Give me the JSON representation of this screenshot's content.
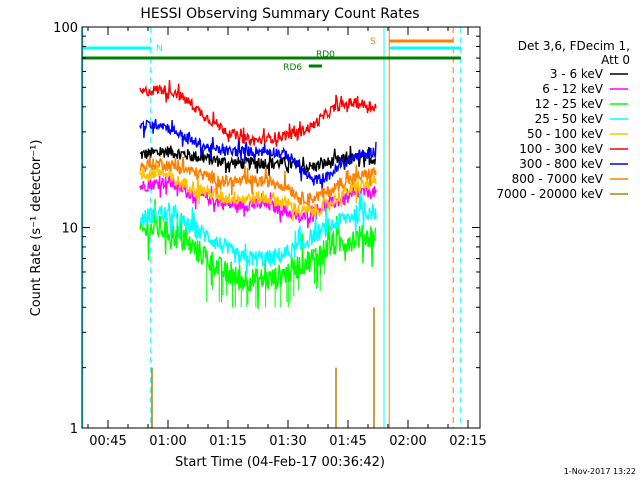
{
  "chart_data": {
    "type": "line",
    "title": "HESSI Observing Summary Count Rates",
    "xlabel": "Start Time (04-Feb-17 00:36:42)",
    "ylabel": "Count Rate (s⁻¹ detector⁻¹)",
    "footer": "1-Nov-2017 13:22",
    "y_scale": "log",
    "ylim": [
      1,
      100
    ],
    "y_ticks": [
      {
        "value": 1,
        "label": "1"
      },
      {
        "value": 10,
        "label": "10"
      },
      {
        "value": 100,
        "label": "100"
      }
    ],
    "xlim_minutes": [
      38.5,
      138
    ],
    "x_ticks": [
      {
        "value": 45,
        "label": "00:45"
      },
      {
        "value": 60,
        "label": "01:00"
      },
      {
        "value": 75,
        "label": "01:15"
      },
      {
        "value": 90,
        "label": "01:30"
      },
      {
        "value": 105,
        "label": "01:45"
      },
      {
        "value": 120,
        "label": "02:00"
      },
      {
        "value": 135,
        "label": "02:15"
      }
    ],
    "legend": {
      "placement": "right",
      "header": [
        "Det 3,6, FDecim 1,",
        "Att 0"
      ],
      "entries": [
        {
          "label": "3 - 6 keV",
          "color": "#000000"
        },
        {
          "label": "6 - 12 keV",
          "color": "#ff00ff"
        },
        {
          "label": "12 - 25 keV",
          "color": "#00ff00"
        },
        {
          "label": "25 - 50 keV",
          "color": "#00ffff"
        },
        {
          "label": "50 - 100 keV",
          "color": "#ffc000"
        },
        {
          "label": "100 - 300 keV",
          "color": "#ff0000"
        },
        {
          "label": "300 - 800 keV",
          "color": "#0000ff"
        },
        {
          "label": "800 - 7000 keV",
          "color": "#ff8000"
        },
        {
          "label": "7000 - 20000 keV",
          "color": "#b08000"
        }
      ]
    },
    "data_range_minutes": [
      53,
      112
    ],
    "series": [
      {
        "legend": "3 - 6 keV",
        "color": "#000000",
        "noise": 0.07,
        "x": [
          53,
          60,
          65,
          70,
          75,
          80,
          85,
          90,
          93,
          96,
          100,
          105,
          108,
          111,
          112
        ],
        "y": [
          23,
          24,
          23,
          22,
          21,
          21,
          21,
          21,
          20,
          20,
          21,
          22,
          22,
          22,
          22
        ]
      },
      {
        "legend": "6 - 12 keV",
        "color": "#ff00ff",
        "noise": 0.07,
        "x": [
          53,
          60,
          65,
          70,
          75,
          80,
          85,
          90,
          93,
          96,
          100,
          105,
          108,
          111,
          112
        ],
        "y": [
          16,
          17,
          15,
          14,
          13,
          13,
          13,
          12,
          11,
          12,
          13,
          14,
          15,
          15,
          15
        ]
      },
      {
        "legend": "12 - 25 keV",
        "color": "#00ff00",
        "noise": 0.14,
        "x": [
          53,
          58,
          62,
          66,
          70,
          74,
          78,
          82,
          86,
          90,
          93,
          96,
          100,
          104,
          108,
          112
        ],
        "y": [
          9.5,
          10,
          9,
          8,
          7,
          6,
          5.5,
          5.5,
          5.5,
          6,
          6.5,
          7,
          8,
          8.5,
          9,
          9
        ]
      },
      {
        "legend": "25 - 50 keV",
        "color": "#00ffff",
        "noise": 0.1,
        "x": [
          53,
          58,
          62,
          66,
          70,
          74,
          78,
          82,
          86,
          90,
          93,
          96,
          100,
          104,
          108,
          112
        ],
        "y": [
          11,
          12,
          11,
          10,
          9,
          8,
          7,
          7,
          7,
          7.5,
          8,
          9,
          10,
          11,
          12,
          12
        ]
      },
      {
        "legend": "50 - 100 keV",
        "color": "#ffc000",
        "noise": 0.08,
        "x": [
          53,
          58,
          62,
          66,
          70,
          74,
          78,
          82,
          86,
          90,
          93,
          96,
          100,
          104,
          108,
          112
        ],
        "y": [
          18,
          19,
          17,
          16,
          15,
          14,
          14,
          14,
          14,
          13,
          12,
          12,
          13,
          15,
          16,
          17
        ]
      },
      {
        "legend": "100 - 300 keV",
        "color": "#ff0000",
        "noise": 0.06,
        "x": [
          53,
          58,
          62,
          66,
          70,
          74,
          78,
          82,
          86,
          90,
          93,
          96,
          99,
          102,
          106,
          109,
          112
        ],
        "y": [
          47,
          49,
          47,
          41,
          35,
          31,
          28,
          27,
          28,
          29,
          30,
          32,
          36,
          40,
          42,
          41,
          40
        ]
      },
      {
        "legend": "300 - 800 keV",
        "color": "#0000ff",
        "noise": 0.06,
        "x": [
          53,
          58,
          62,
          66,
          70,
          74,
          78,
          82,
          86,
          90,
          93,
          96,
          100,
          104,
          108,
          112
        ],
        "y": [
          32,
          33,
          30,
          27,
          25,
          24,
          24,
          24,
          24,
          23,
          20,
          17,
          18,
          21,
          23,
          24
        ]
      },
      {
        "legend": "800 - 7000 keV",
        "color": "#ff8000",
        "noise": 0.07,
        "x": [
          53,
          58,
          62,
          66,
          70,
          74,
          78,
          82,
          86,
          90,
          93,
          96,
          100,
          104,
          108,
          112
        ],
        "y": [
          20,
          21,
          20,
          19,
          18,
          17,
          17,
          17,
          17,
          16,
          14,
          14,
          15,
          17,
          18,
          19
        ]
      }
    ],
    "sparse_spikes": {
      "legend": "7000 - 20000 keV",
      "color": "#b08000",
      "x": [
        56,
        102,
        111.5
      ],
      "y": [
        2,
        2,
        4
      ]
    },
    "annotations": {
      "vertical_lines": [
        {
          "x": 38.7,
          "color": "#00ffff",
          "style": "solid"
        },
        {
          "x": 55.7,
          "color": "#00ffff",
          "style": "dashed"
        },
        {
          "x": 114,
          "color": "#00ffff",
          "style": "solid"
        },
        {
          "x": 115.3,
          "color": "#ff8000",
          "style": "solid"
        },
        {
          "x": 131.3,
          "color": "#ff8000",
          "style": "dashed"
        },
        {
          "x": 133.2,
          "color": "#00ffff",
          "style": "dashed"
        }
      ],
      "bars": [
        {
          "label": "N",
          "color": "#00ffff",
          "level": 0,
          "segments": [
            [
              38.7,
              55.7
            ],
            [
              115.3,
              133.2
            ]
          ],
          "label_x": 57
        },
        {
          "label": "S",
          "color": "#ff8000",
          "level": -1,
          "segments": [
            [
              115.3,
              131.3
            ]
          ],
          "label_x": 110.5
        },
        {
          "label": "",
          "color": "#008000",
          "level": 1,
          "segments": [
            [
              38.7,
              133.2
            ]
          ]
        },
        {
          "label": "RD0",
          "color": "#008000",
          "level": 2,
          "segments": [],
          "label_x": 97
        },
        {
          "label": "RD6",
          "color": "#008000",
          "level": 3,
          "segments": [
            [
              95.2,
              98.5
            ]
          ],
          "label_x": 88.8
        }
      ]
    }
  }
}
